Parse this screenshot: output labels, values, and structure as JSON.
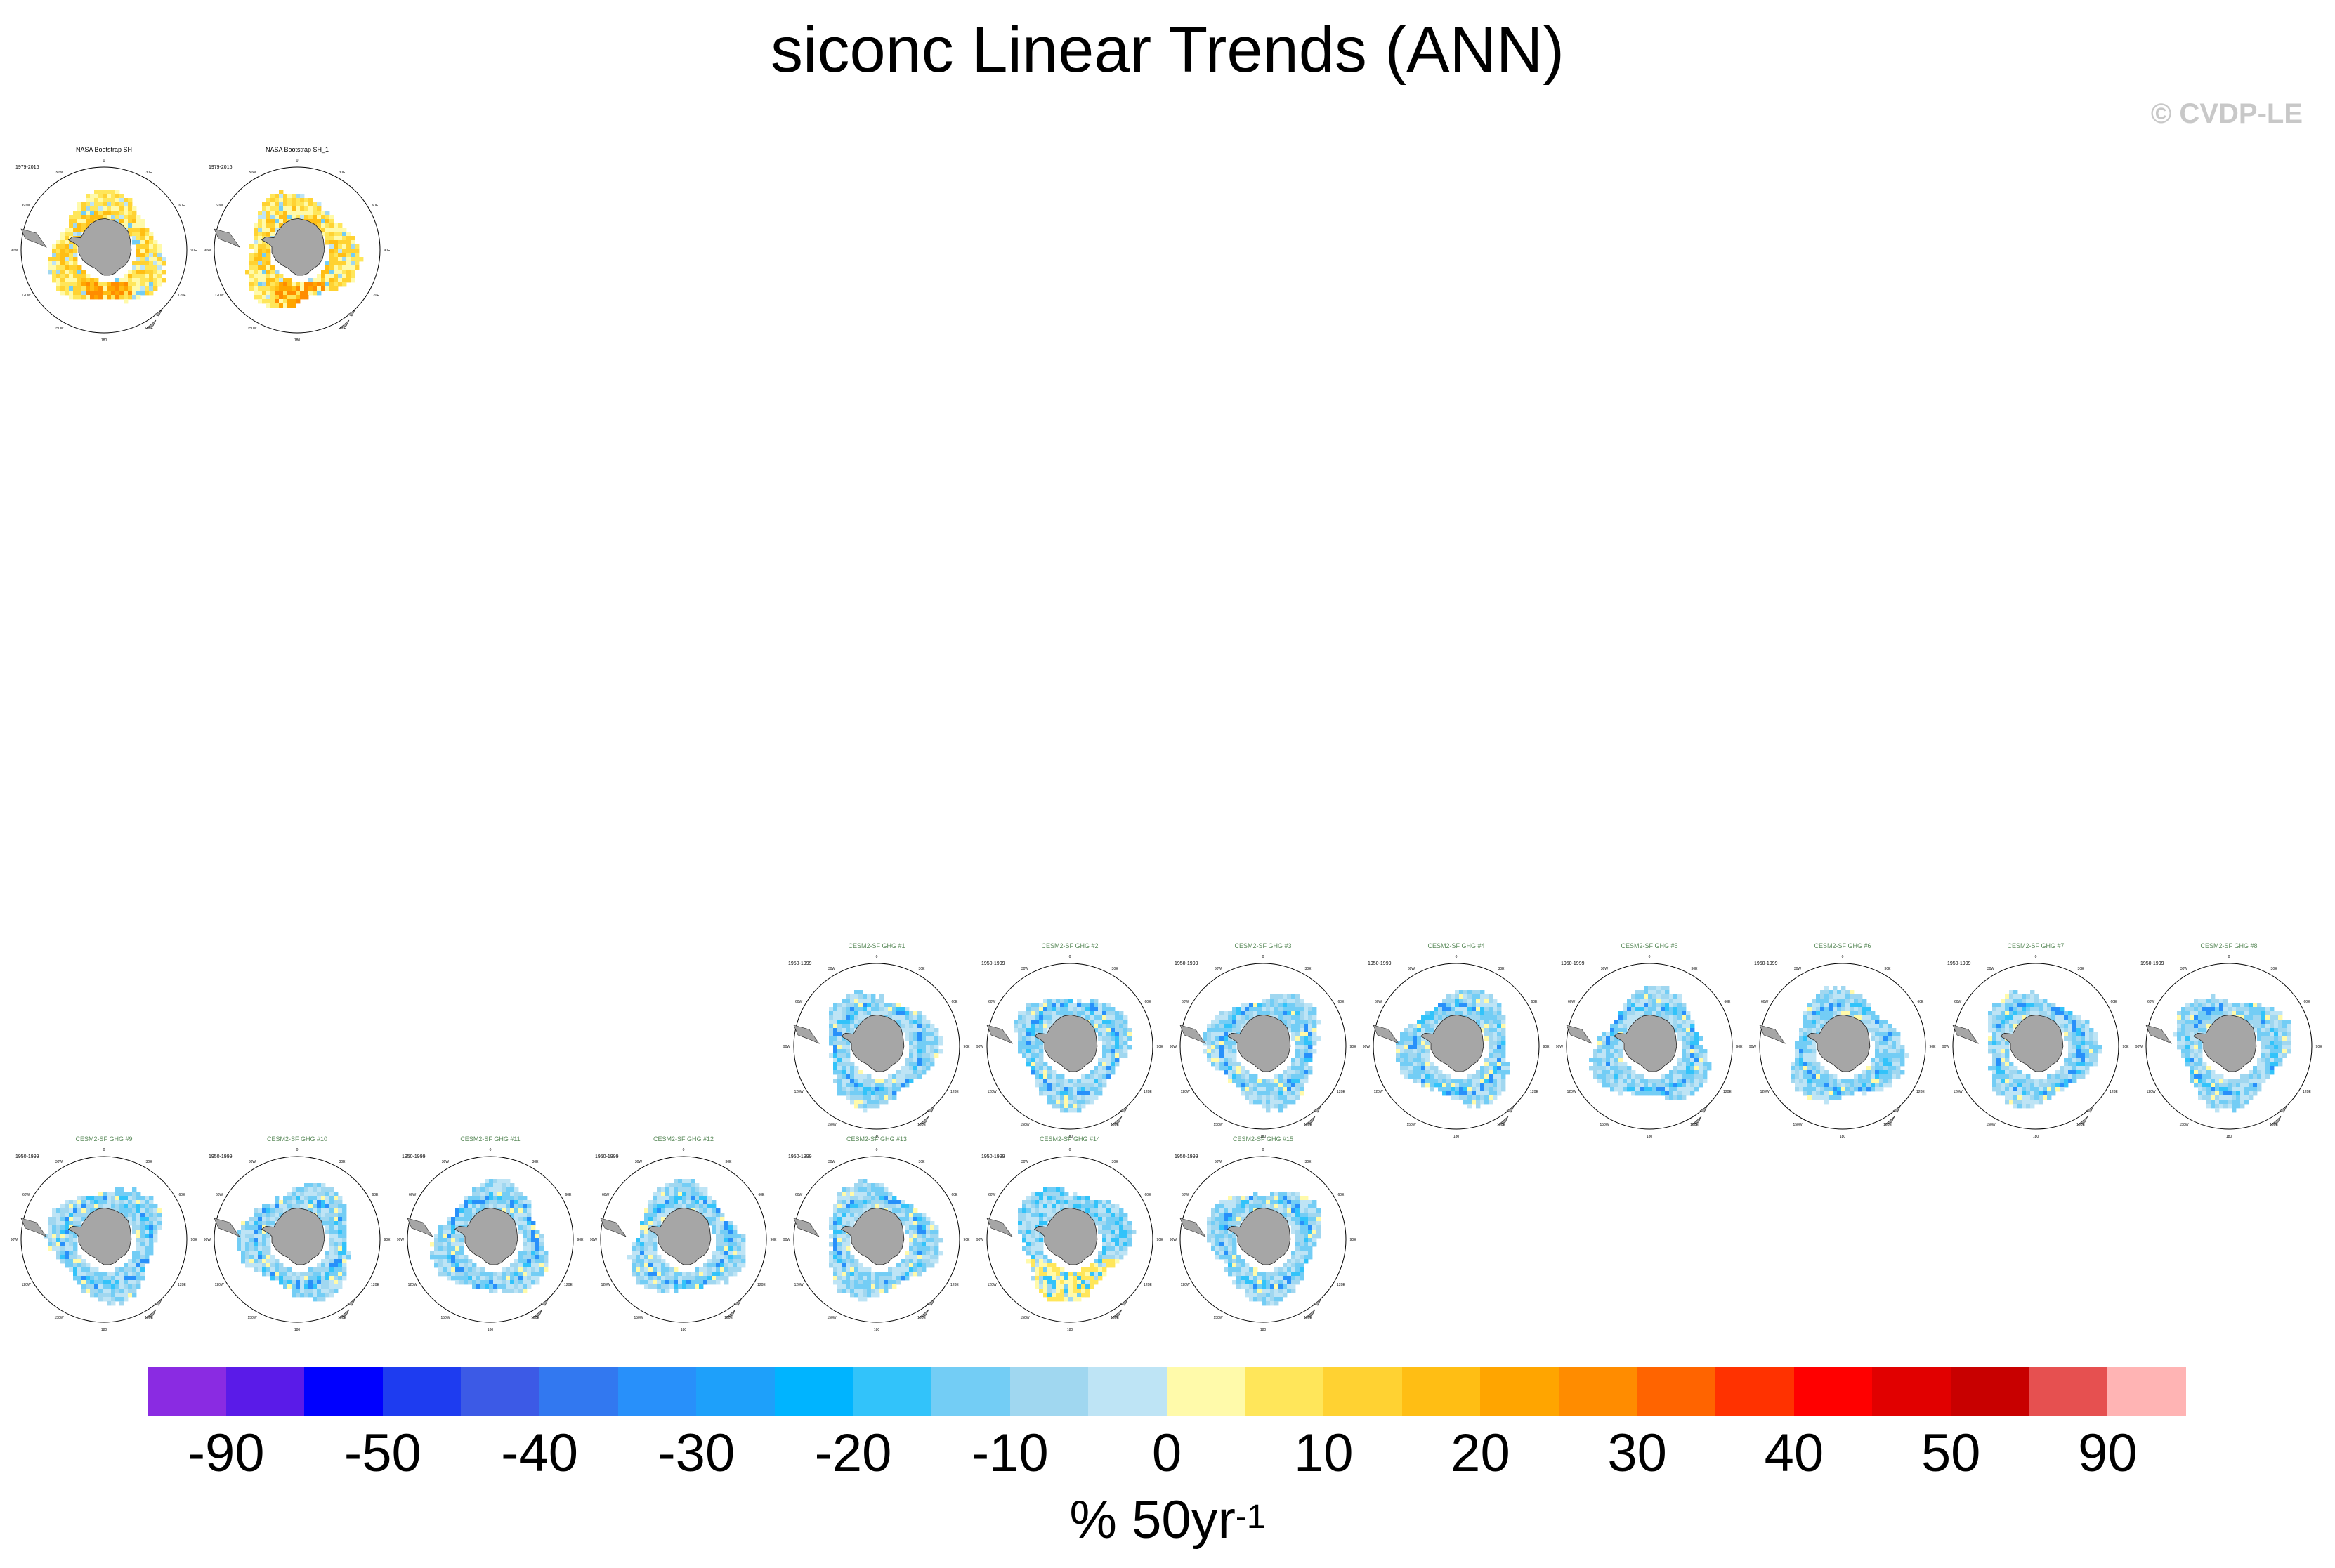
{
  "figure": {
    "title": "siconc Linear Trends (ANN)",
    "copyright": "© CVDP-LE"
  },
  "chart_data": {
    "type": "heatmap",
    "description_variable": "siconc",
    "map_projection": "south polar stereographic",
    "longitude_ticks": [
      "0",
      "30E",
      "60E",
      "90E",
      "120E",
      "150E",
      "180",
      "150W",
      "120W",
      "90W",
      "60W",
      "30W"
    ],
    "panels": [
      {
        "name": "NASA Bootstrap SH",
        "period": "1979-2016",
        "row": 0,
        "col": 0,
        "kind": "obs",
        "pattern": "positive"
      },
      {
        "name": "NASA Bootstrap SH_1",
        "period": "1979-2016",
        "row": 0,
        "col": 1,
        "kind": "obs",
        "pattern": "positive"
      },
      {
        "name": "CESM2-SF GHG #1",
        "period": "1950-1999",
        "row": 1,
        "col": 4,
        "kind": "model",
        "pattern": "negative"
      },
      {
        "name": "CESM2-SF GHG #2",
        "period": "1950-1999",
        "row": 1,
        "col": 5,
        "kind": "model",
        "pattern": "negative"
      },
      {
        "name": "CESM2-SF GHG #3",
        "period": "1950-1999",
        "row": 1,
        "col": 6,
        "kind": "model",
        "pattern": "negative"
      },
      {
        "name": "CESM2-SF GHG #4",
        "period": "1950-1999",
        "row": 1,
        "col": 7,
        "kind": "model",
        "pattern": "negative"
      },
      {
        "name": "CESM2-SF GHG #5",
        "period": "1950-1999",
        "row": 1,
        "col": 8,
        "kind": "model",
        "pattern": "negative"
      },
      {
        "name": "CESM2-SF GHG #6",
        "period": "1950-1999",
        "row": 1,
        "col": 9,
        "kind": "model",
        "pattern": "negative"
      },
      {
        "name": "CESM2-SF GHG #7",
        "period": "1950-1999",
        "row": 1,
        "col": 10,
        "kind": "model",
        "pattern": "negative"
      },
      {
        "name": "CESM2-SF GHG #8",
        "period": "1950-1999",
        "row": 1,
        "col": 11,
        "kind": "model",
        "pattern": "negative"
      },
      {
        "name": "CESM2-SF GHG #9",
        "period": "1950-1999",
        "row": 2,
        "col": 0,
        "kind": "model",
        "pattern": "negative"
      },
      {
        "name": "CESM2-SF GHG #10",
        "period": "1950-1999",
        "row": 2,
        "col": 1,
        "kind": "model",
        "pattern": "negative"
      },
      {
        "name": "CESM2-SF GHG #11",
        "period": "1950-1999",
        "row": 2,
        "col": 2,
        "kind": "model",
        "pattern": "negative"
      },
      {
        "name": "CESM2-SF GHG #12",
        "period": "1950-1999",
        "row": 2,
        "col": 3,
        "kind": "model",
        "pattern": "negative"
      },
      {
        "name": "CESM2-SF GHG #13",
        "period": "1950-1999",
        "row": 2,
        "col": 4,
        "kind": "model",
        "pattern": "negative"
      },
      {
        "name": "CESM2-SF GHG #14",
        "period": "1950-1999",
        "row": 2,
        "col": 5,
        "kind": "model",
        "pattern": "mixed"
      },
      {
        "name": "CESM2-SF GHG #15",
        "period": "1950-1999",
        "row": 2,
        "col": 6,
        "kind": "model",
        "pattern": "negative"
      }
    ],
    "colorbar": {
      "units": "% 50yr",
      "units_superscript": "-1",
      "labels": [
        "-90",
        "-50",
        "-40",
        "-30",
        "-20",
        "-10",
        "0",
        "10",
        "20",
        "30",
        "40",
        "50",
        "90"
      ],
      "colors": [
        "#8a2be2",
        "#5a1be8",
        "#0000ff",
        "#1e3cf0",
        "#3c5ae6",
        "#3278f0",
        "#2890fa",
        "#1ea0fa",
        "#00b4ff",
        "#32c3fa",
        "#73cdf5",
        "#a0d7f0",
        "#bee4f5",
        "#fffaaa",
        "#ffe65a",
        "#ffd232",
        "#ffbe14",
        "#ffa500",
        "#ff8c00",
        "#ff6400",
        "#ff3200",
        "#ff0000",
        "#e10000",
        "#c80000",
        "#e65050",
        "#ffb4b4"
      ]
    }
  },
  "colors": {
    "land": "#a6a6a6",
    "obs_title": "#000000",
    "model_title": "#5a8a5a",
    "background": "#ffffff"
  }
}
